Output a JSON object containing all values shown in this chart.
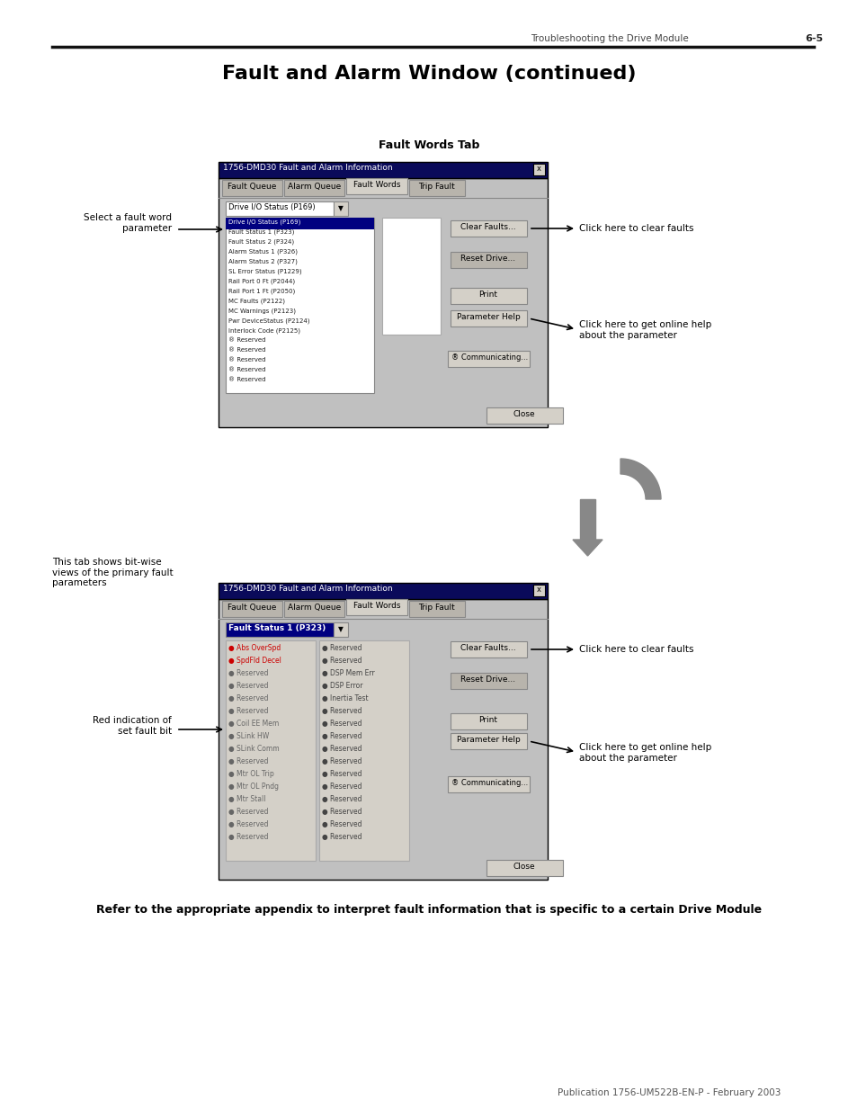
{
  "bg_color": "#ffffff",
  "page_header_text": "Troubleshooting the Drive Module",
  "page_number": "6-5",
  "main_title": "Fault and Alarm Window (continued)",
  "section1_title": "Fault Words Tab",
  "section1_dialog_title": "1756-DMD30 Fault and Alarm Information",
  "section1_tabs": [
    "Fault Queue",
    "Alarm Queue",
    "Fault Words",
    "Trip Fault"
  ],
  "section1_active_tab": "Fault Words",
  "section1_dropdown_label": "Drive I/O Status (P169)",
  "section1_list_items": [
    "Drive I/O Status (P169)",
    "Fault Status 1 (P323)",
    "Fault Status 2 (P324)",
    "Alarm Status 1 (P326)",
    "Alarm Status 2 (P327)",
    "SL Error Status (P1229)",
    "Rail Port 0 Ft (P2044)",
    "Rail Port 1 Ft (P2050)",
    "MC Faults (P2122)",
    "MC Warnings (P2123)",
    "Pwr DeviceStatus (P2124)",
    "Interlock Code (P2125)",
    "® Reserved",
    "® Reserved",
    "® Reserved",
    "® Reserved",
    "® Reserved"
  ],
  "section1_buttons": [
    "Clear Faults...",
    "Reset Drive...",
    "Print",
    "Parameter Help",
    "Close"
  ],
  "section1_communicating": "® Communicating...",
  "section1_arrow_label_left": "Select a fault word\nparameter",
  "section1_arrow_label_right1": "Click here to clear faults",
  "section1_arrow_label_right2": "Click here to get online help\nabout the parameter",
  "section2_title": "This tab shows bit-wise\nviews of the primary fault\nparameters",
  "section2_dialog_title": "1756-DMD30 Fault and Alarm Information",
  "section2_tabs": [
    "Fault Queue",
    "Alarm Queue",
    "Fault Words",
    "Trip Fault"
  ],
  "section2_active_tab": "Fault Words",
  "section2_dropdown_label": "Fault Status 1 (P323)",
  "section2_left_items": [
    "Abs OverSpd",
    "SpdFld Decel",
    "Reserved",
    "Reserved",
    "Reserved",
    "Reserved",
    "Coil EE Mem",
    "SLink HW",
    "SLink Comm",
    "Reserved",
    "Mtr OL Trip",
    "Mtr OL Pndg",
    "Mtr Stall",
    "Reserved",
    "Reserved",
    "Reserved"
  ],
  "section2_right_items": [
    "Reserved",
    "Reserved",
    "DSP Mem Err",
    "DSP Error",
    "Inertia Test",
    "Reserved",
    "Reserved",
    "Reserved",
    "Reserved",
    "Reserved",
    "Reserved",
    "Reserved",
    "Reserved",
    "Reserved",
    "Reserved",
    "Reserved"
  ],
  "section2_arrow_label_left": "Red indication of\nset fault bit",
  "section2_arrow_label_right1": "Click here to clear faults",
  "section2_arrow_label_right2": "Click here to get online help\nabout the parameter",
  "bottom_text": "Refer to the appropriate appendix to interpret fault information that is specific to a certain Drive Module",
  "footer_text": "Publication 1756-UM522B-EN-P - February 2003"
}
